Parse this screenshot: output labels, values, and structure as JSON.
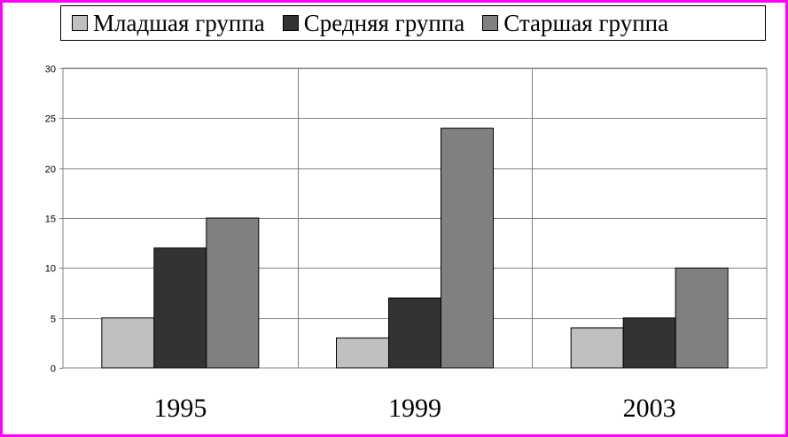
{
  "chart_data": {
    "type": "bar",
    "categories": [
      "1995",
      "1999",
      "2003"
    ],
    "series": [
      {
        "name": "Младшая группа",
        "values": [
          5,
          3,
          4
        ],
        "color": "#c0c0c0"
      },
      {
        "name": "Средняя группа",
        "values": [
          12,
          7,
          5
        ],
        "color": "#333333"
      },
      {
        "name": "Старшая группа",
        "values": [
          15,
          24,
          10
        ],
        "color": "#808080"
      }
    ],
    "yticks": [
      "0",
      "5",
      "10",
      "15",
      "20",
      "25",
      "30"
    ],
    "ylim": [
      0,
      30
    ],
    "grid": true,
    "legend_position": "top"
  },
  "colors": {
    "frame": "#ff00ff",
    "gridline": "#808080",
    "axis": "#808080"
  }
}
